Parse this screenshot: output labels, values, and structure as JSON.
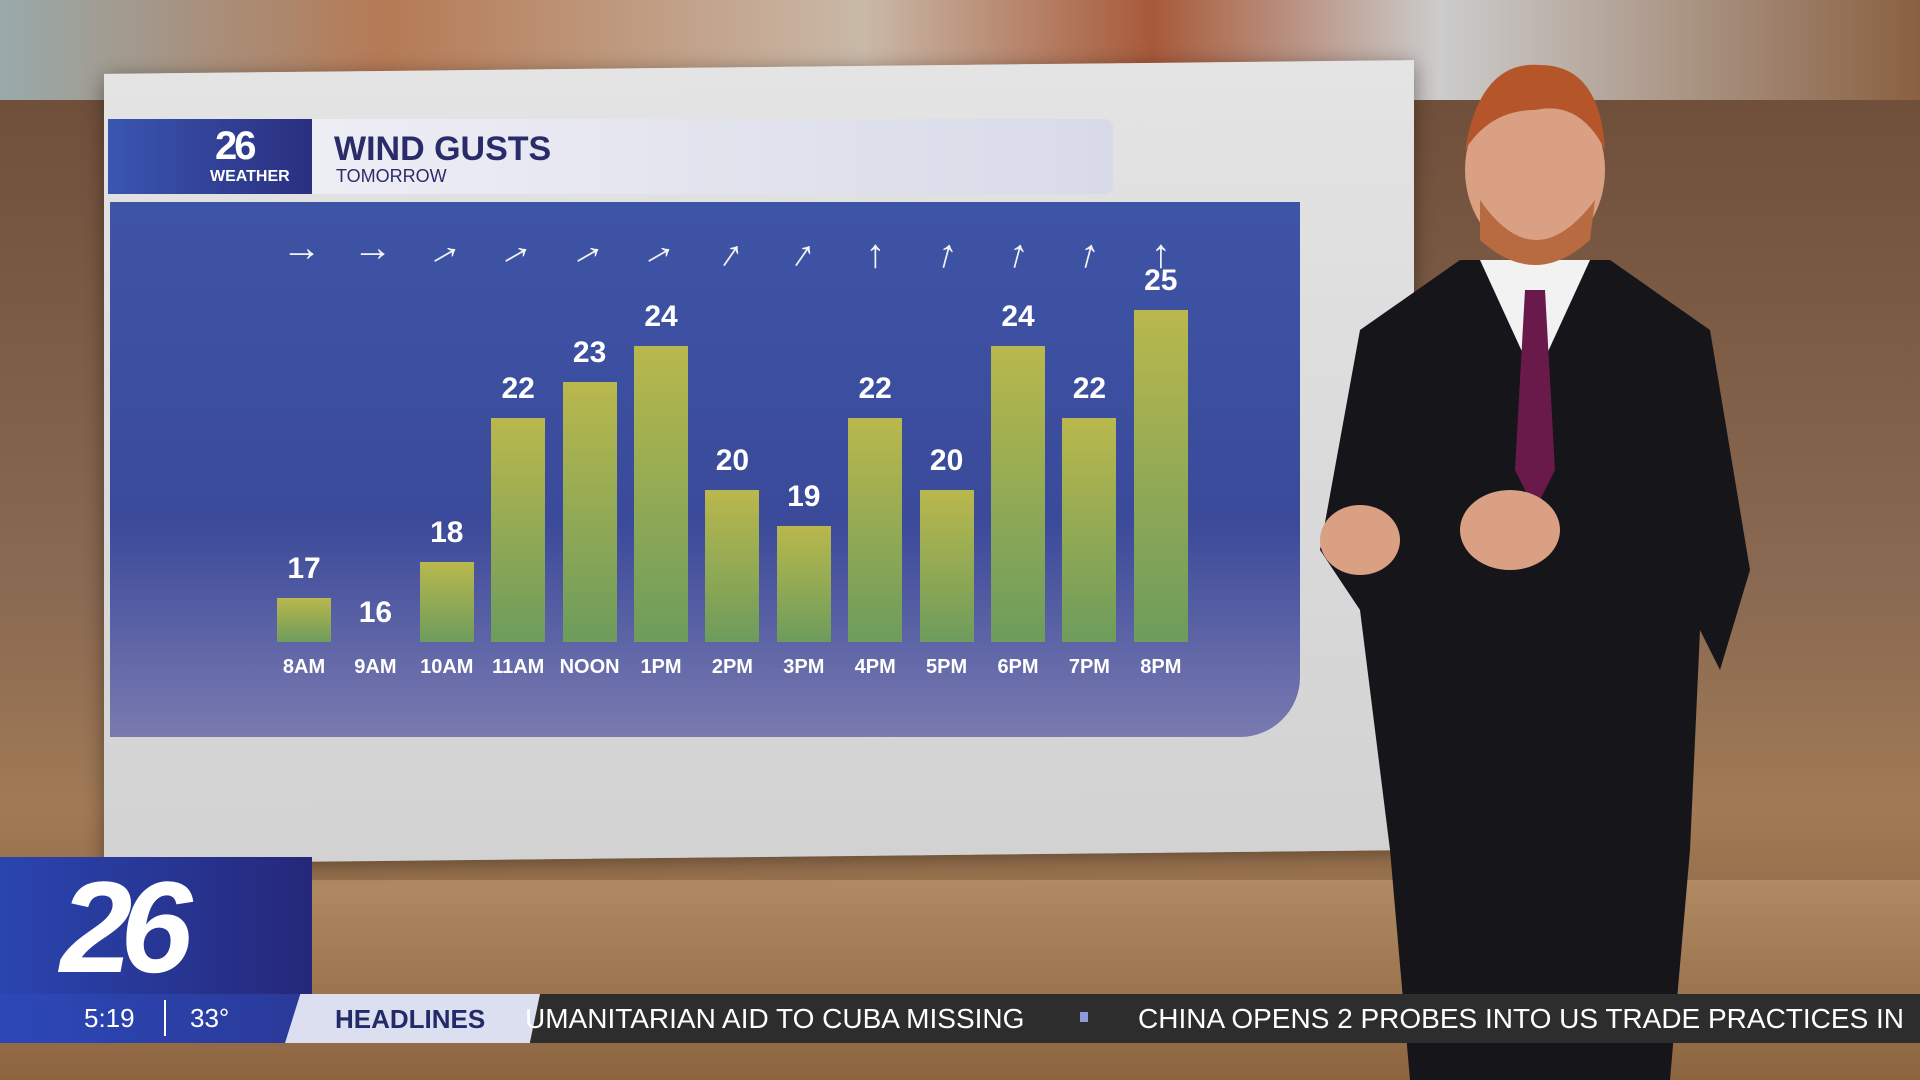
{
  "graphic": {
    "logo_number": "26",
    "logo_sub": "WEATHER",
    "title": "WIND GUSTS",
    "subtitle": "TOMORROW"
  },
  "chart_data": {
    "type": "bar",
    "title": "WIND GUSTS",
    "subtitle": "TOMORROW",
    "categories": [
      "8AM",
      "9AM",
      "10AM",
      "11AM",
      "NOON",
      "1PM",
      "2PM",
      "3PM",
      "4PM",
      "5PM",
      "6PM",
      "7PM",
      "8PM"
    ],
    "values": [
      17,
      16,
      18,
      22,
      23,
      24,
      20,
      19,
      22,
      20,
      24,
      22,
      25
    ],
    "wind_direction_arrows_deg": [
      90,
      90,
      60,
      60,
      60,
      60,
      35,
      35,
      0,
      15,
      15,
      15,
      0
    ],
    "colors": {
      "bar_top": "#b9b84c",
      "bar_bottom": "#6d9c5c",
      "background": "#3e54a6"
    }
  },
  "station": {
    "logo": "26",
    "time": "5:19",
    "temperature": "33°"
  },
  "ticker": {
    "label": "HEADLINES",
    "items": [
      "UMANITARIAN AID TO CUBA MISSING",
      "CHINA OPENS 2 PROBES INTO US TRADE PRACTICES IN"
    ]
  }
}
